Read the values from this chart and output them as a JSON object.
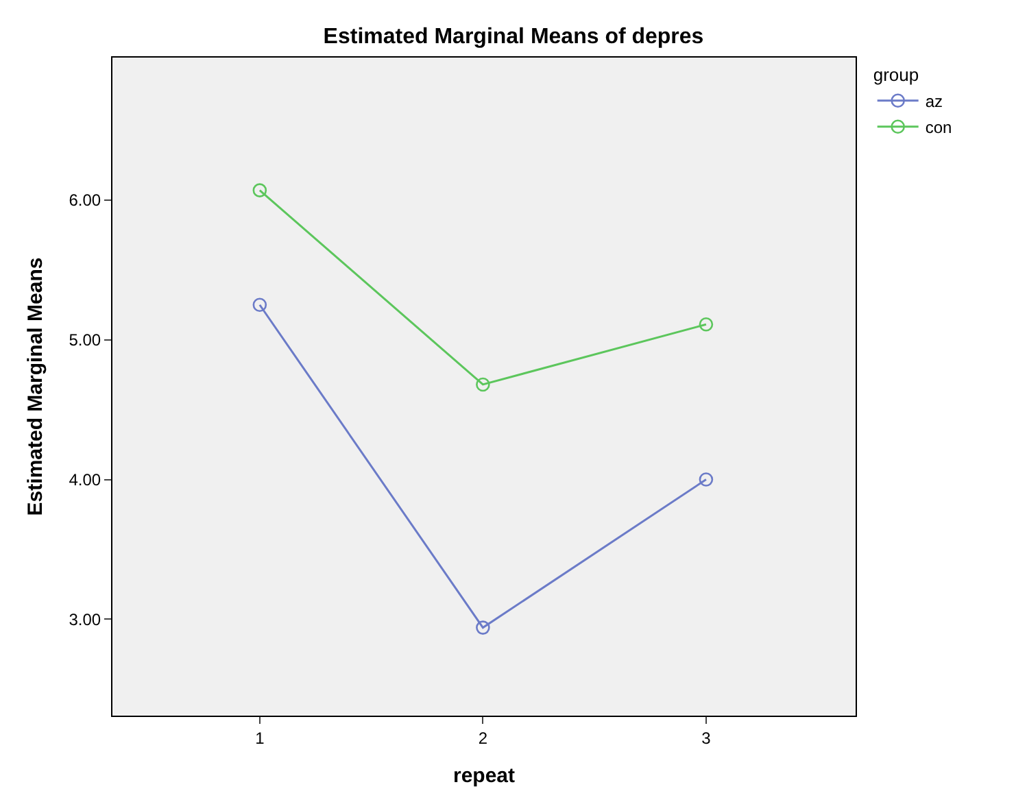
{
  "chart_data": {
    "type": "line",
    "title": "Estimated Marginal Means of depres",
    "xlabel": "repeat",
    "ylabel": "Estimated Marginal Means",
    "legend_title": "group",
    "x": [
      1,
      2,
      3
    ],
    "series": [
      {
        "name": "az",
        "color": "#6b7bc8",
        "values": [
          5.25,
          2.94,
          4.0
        ]
      },
      {
        "name": "con",
        "color": "#5cc65c",
        "values": [
          6.07,
          4.68,
          5.11
        ]
      }
    ],
    "xlim": [
      0.34,
      3.67
    ],
    "xticks": [
      1,
      2,
      3
    ],
    "ylim": [
      2.31,
      7.02
    ],
    "yticks": [
      {
        "value": 3,
        "label": "3.00"
      },
      {
        "value": 4,
        "label": "4.00"
      },
      {
        "value": 5,
        "label": "5.00"
      },
      {
        "value": 6,
        "label": "6.00"
      }
    ],
    "grid": false,
    "legend": "top right",
    "marker": "circle",
    "line_style": "solid"
  }
}
